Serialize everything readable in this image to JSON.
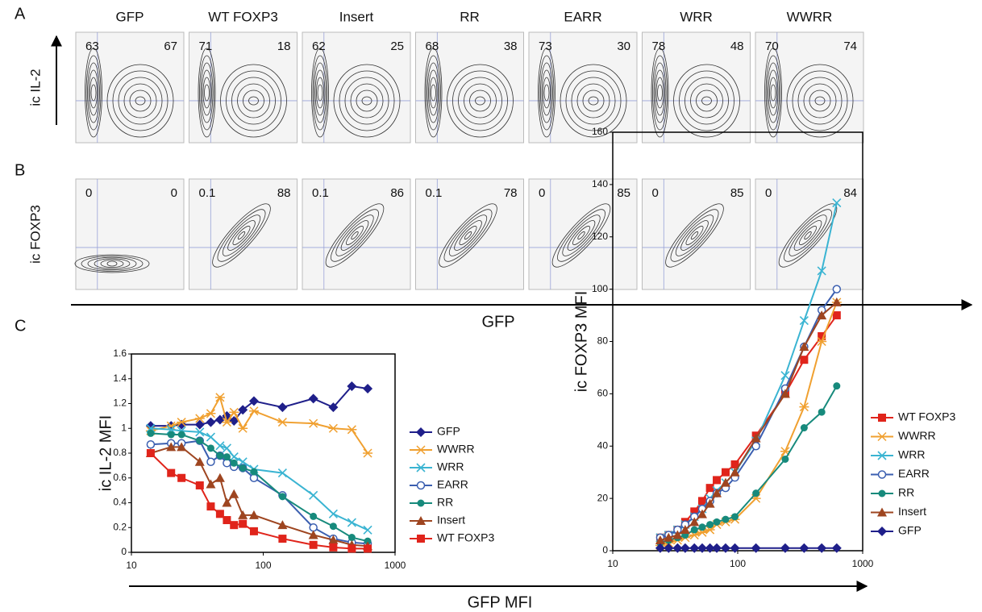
{
  "panel_labels": [
    "A",
    "B",
    "C"
  ],
  "flow": {
    "samples": [
      "GFP",
      "WT FOXP3",
      "Insert",
      "RR",
      "EARR",
      "WRR",
      "WWRR"
    ],
    "rows": [
      {
        "y_label": "ic IL-2",
        "quadrants": [
          [
            63,
            67
          ],
          [
            71,
            18
          ],
          [
            62,
            25
          ],
          [
            68,
            38
          ],
          [
            73,
            30
          ],
          [
            78,
            48
          ],
          [
            70,
            74
          ]
        ]
      },
      {
        "y_label": "ic FOXP3",
        "quadrants": [
          [
            0,
            0
          ],
          [
            0.1,
            88
          ],
          [
            0.1,
            86
          ],
          [
            0.1,
            78
          ],
          [
            0,
            85
          ],
          [
            0,
            85
          ],
          [
            0,
            84
          ]
        ]
      }
    ],
    "x_label": "GFP"
  },
  "x_label": "GFP MFI",
  "chart_data": [
    {
      "type": "line",
      "y_label": "ic IL-2 MFI",
      "x_scale": "log",
      "x": [
        14,
        20,
        24,
        33,
        40,
        47,
        53,
        60,
        70,
        85,
        140,
        240,
        340,
        470,
        620
      ],
      "xlim": [
        10,
        1000
      ],
      "xticks": [
        10,
        100,
        1000
      ],
      "ylim": [
        0,
        1.6
      ],
      "yticks": [
        0,
        0.2,
        0.4,
        0.6,
        0.8,
        1,
        1.2,
        1.4,
        1.6
      ],
      "series": [
        {
          "name": "GFP",
          "color": "#1f1f8a",
          "marker": "diamond",
          "values": [
            1.02,
            1.02,
            1.03,
            1.03,
            1.05,
            1.07,
            1.1,
            1.06,
            1.15,
            1.22,
            1.17,
            1.24,
            1.17,
            1.34,
            1.32
          ]
        },
        {
          "name": "WWRR",
          "color": "#f0a030",
          "marker": "star",
          "values": [
            0.98,
            1.02,
            1.05,
            1.08,
            1.12,
            1.25,
            1.05,
            1.13,
            1.0,
            1.14,
            1.05,
            1.04,
            1.0,
            0.99,
            0.8
          ]
        },
        {
          "name": "WRR",
          "color": "#3ab4d2",
          "marker": "cross",
          "values": [
            1.0,
            0.99,
            0.98,
            0.97,
            0.93,
            0.86,
            0.84,
            0.77,
            0.73,
            0.67,
            0.64,
            0.46,
            0.31,
            0.24,
            0.18
          ]
        },
        {
          "name": "EARR",
          "color": "#3b5fb0",
          "marker": "open-circle",
          "values": [
            0.87,
            0.88,
            0.88,
            0.9,
            0.73,
            0.78,
            0.72,
            0.69,
            0.68,
            0.6,
            0.46,
            0.2,
            0.11,
            0.08,
            0.07
          ]
        },
        {
          "name": "RR",
          "color": "#178a7c",
          "marker": "circle",
          "values": [
            0.96,
            0.95,
            0.95,
            0.9,
            0.84,
            0.78,
            0.77,
            0.72,
            0.68,
            0.65,
            0.45,
            0.29,
            0.21,
            0.12,
            0.09
          ]
        },
        {
          "name": "Insert",
          "color": "#9e4520",
          "marker": "triangle",
          "values": [
            0.8,
            0.85,
            0.85,
            0.73,
            0.55,
            0.6,
            0.4,
            0.47,
            0.3,
            0.3,
            0.22,
            0.14,
            0.1,
            0.06,
            0.05
          ]
        },
        {
          "name": "WT FOXP3",
          "color": "#e0241b",
          "marker": "square",
          "values": [
            0.8,
            0.64,
            0.6,
            0.54,
            0.37,
            0.31,
            0.26,
            0.22,
            0.23,
            0.17,
            0.11,
            0.06,
            0.04,
            0.03,
            0.03
          ]
        }
      ]
    },
    {
      "type": "line",
      "y_label": "ic FOXP3 MFI",
      "x_scale": "log",
      "x": [
        24,
        28,
        33,
        38,
        45,
        52,
        60,
        68,
        80,
        95,
        140,
        240,
        340,
        470,
        620
      ],
      "xlim": [
        10,
        1000
      ],
      "xticks": [
        10,
        100,
        1000
      ],
      "ylim": [
        0,
        160
      ],
      "yticks": [
        0,
        20,
        40,
        60,
        80,
        100,
        120,
        140,
        160
      ],
      "series": [
        {
          "name": "WT FOXP3",
          "color": "#e0241b",
          "marker": "square",
          "values": [
            5,
            6,
            8,
            11,
            15,
            19,
            24,
            27,
            30,
            33,
            44,
            60,
            73,
            82,
            90
          ]
        },
        {
          "name": "WWRR",
          "color": "#f0a030",
          "marker": "star",
          "values": [
            2,
            3,
            4,
            5,
            6,
            7,
            8,
            10,
            11,
            12,
            20,
            38,
            55,
            80,
            95
          ]
        },
        {
          "name": "WRR",
          "color": "#3ab4d2",
          "marker": "cross",
          "values": [
            5,
            6,
            8,
            10,
            13,
            16,
            20,
            23,
            26,
            30,
            42,
            67,
            88,
            107,
            133
          ]
        },
        {
          "name": "EARR",
          "color": "#3b5fb0",
          "marker": "open-circle",
          "values": [
            5,
            6,
            8,
            10,
            13,
            16,
            19,
            22,
            24,
            28,
            40,
            62,
            78,
            92,
            100
          ]
        },
        {
          "name": "RR",
          "color": "#178a7c",
          "marker": "circle",
          "values": [
            3,
            4,
            5,
            6,
            8,
            9,
            10,
            11,
            12,
            13,
            22,
            35,
            47,
            53,
            63
          ]
        },
        {
          "name": "Insert",
          "color": "#9e4520",
          "marker": "triangle",
          "values": [
            4,
            5,
            6,
            8,
            11,
            14,
            18,
            22,
            26,
            30,
            43,
            60,
            78,
            90,
            95
          ]
        },
        {
          "name": "GFP",
          "color": "#1f1f8a",
          "marker": "diamond",
          "values": [
            1,
            1,
            1,
            1,
            1,
            1,
            1,
            1,
            1,
            1,
            1,
            1,
            1,
            1,
            1
          ]
        }
      ]
    }
  ]
}
